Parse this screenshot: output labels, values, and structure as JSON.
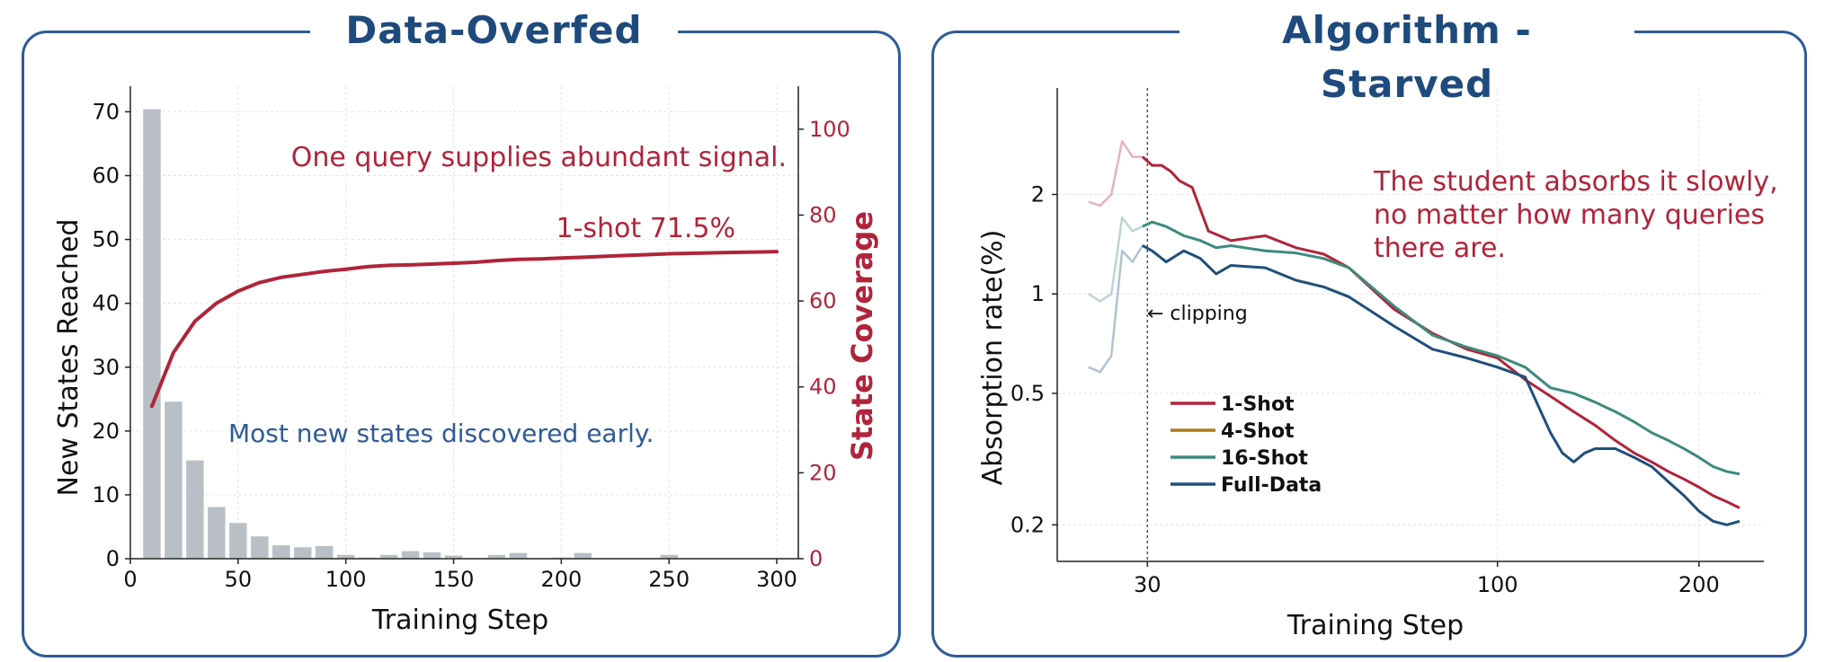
{
  "panels": {
    "left_title": "Data-Overfed",
    "right_title": "Algorithm -Starved"
  },
  "colors": {
    "frame": "#2f5b96",
    "title": "#1e4a7c",
    "accent_red": "#b0243a",
    "bar": "#b9bfc7",
    "blue_text": "#2f5b96"
  },
  "chart_data": [
    {
      "type": "bar",
      "xlabel": "Training Step",
      "ylabel": "New States Reached",
      "xlim": [
        0,
        310
      ],
      "ylim": [
        0,
        74
      ],
      "xticks": [
        0,
        50,
        100,
        150,
        200,
        250,
        300
      ],
      "yticks": [
        0,
        10,
        20,
        30,
        40,
        50,
        60,
        70
      ],
      "grid": true,
      "bar_width": 10,
      "bars": {
        "x": [
          10,
          20,
          30,
          40,
          50,
          60,
          70,
          80,
          90,
          100,
          110,
          120,
          130,
          140,
          150,
          160,
          170,
          180,
          190,
          200,
          210,
          220,
          230,
          240,
          250,
          260,
          270,
          280,
          290,
          300
        ],
        "values": [
          70.5,
          24.7,
          15.5,
          8.2,
          5.7,
          3.6,
          2.2,
          1.9,
          2.1,
          0.7,
          0.3,
          0.7,
          1.3,
          1.1,
          0.6,
          0.2,
          0.7,
          1.0,
          0.2,
          0.3,
          1.0,
          0.2,
          0.2,
          0.2,
          0.7,
          0.2,
          0.2,
          0.2,
          0.2,
          0.2
        ]
      },
      "secondary_axis": {
        "ylabel": "State Coverage",
        "ylim": [
          0,
          110
        ],
        "yticks": [
          0,
          20,
          40,
          60,
          80,
          100
        ]
      },
      "line": {
        "x": [
          10,
          20,
          30,
          40,
          50,
          60,
          70,
          80,
          90,
          100,
          110,
          120,
          130,
          140,
          150,
          160,
          170,
          180,
          190,
          200,
          210,
          220,
          230,
          240,
          250,
          260,
          270,
          280,
          290,
          300
        ],
        "values": [
          35.5,
          48.0,
          55.3,
          59.5,
          62.3,
          64.3,
          65.5,
          66.2,
          66.9,
          67.4,
          68.0,
          68.3,
          68.4,
          68.6,
          68.8,
          69.0,
          69.4,
          69.7,
          69.8,
          70.0,
          70.2,
          70.4,
          70.6,
          70.8,
          71.0,
          71.1,
          71.2,
          71.3,
          71.4,
          71.5
        ]
      },
      "annotations": [
        "One query supplies abundant signal.",
        "1-shot 71.5%",
        "Most new states discovered early."
      ]
    },
    {
      "type": "line",
      "xscale": "log",
      "yscale": "log",
      "xlabel": "Training Step",
      "ylabel": "Absorption rate(%)",
      "xlim": [
        22,
        250
      ],
      "ylim": [
        0.155,
        4.2
      ],
      "xticks": [
        30,
        100,
        200
      ],
      "yticks": [
        0.2,
        0.5,
        1,
        2
      ],
      "ytick_labels": [
        "0.2",
        "0.5",
        "1",
        "2"
      ],
      "grid": true,
      "vline": {
        "x": 30,
        "label": "← clipping"
      },
      "legend": "center-left",
      "series": [
        {
          "name": "1-Shot",
          "color": "#b0243a",
          "x": [
            24.5,
            25.5,
            26.5,
            27.5,
            28.5,
            29.5,
            30.5,
            31.5,
            32.5,
            33.5,
            35,
            37,
            40,
            45,
            50,
            55,
            60,
            70,
            80,
            90,
            100,
            110,
            120,
            130,
            140,
            150,
            160,
            170,
            180,
            190,
            200,
            210,
            220,
            230
          ],
          "values": [
            1.9,
            1.85,
            2.0,
            2.9,
            2.6,
            2.6,
            2.45,
            2.45,
            2.35,
            2.2,
            2.1,
            1.55,
            1.45,
            1.5,
            1.38,
            1.32,
            1.2,
            0.9,
            0.76,
            0.68,
            0.64,
            0.55,
            0.49,
            0.44,
            0.4,
            0.36,
            0.33,
            0.31,
            0.29,
            0.275,
            0.26,
            0.245,
            0.235,
            0.225
          ]
        },
        {
          "name": "4-Shot",
          "color": "#a87d18",
          "x": [],
          "values": []
        },
        {
          "name": "16-Shot",
          "color": "#3d8a7e",
          "x": [
            24.5,
            25.5,
            26.5,
            27.5,
            28.5,
            29.5,
            30.5,
            32,
            34,
            36,
            38,
            40,
            45,
            50,
            55,
            60,
            70,
            80,
            90,
            100,
            110,
            120,
            130,
            140,
            150,
            160,
            170,
            180,
            190,
            200,
            210,
            220,
            230
          ],
          "values": [
            1.0,
            0.95,
            1.0,
            1.7,
            1.55,
            1.6,
            1.65,
            1.6,
            1.5,
            1.45,
            1.38,
            1.4,
            1.35,
            1.33,
            1.28,
            1.2,
            0.92,
            0.75,
            0.69,
            0.65,
            0.6,
            0.52,
            0.5,
            0.47,
            0.44,
            0.41,
            0.38,
            0.36,
            0.34,
            0.32,
            0.3,
            0.29,
            0.285
          ]
        },
        {
          "name": "Full-Data",
          "color": "#1f4f7a",
          "x": [
            24.5,
            25.5,
            26.5,
            27.5,
            28.5,
            29.5,
            30.5,
            32,
            34,
            36,
            38,
            40,
            45,
            50,
            55,
            60,
            70,
            80,
            90,
            100,
            110,
            120,
            125,
            130,
            135,
            140,
            150,
            160,
            170,
            180,
            190,
            200,
            210,
            220,
            230
          ],
          "values": [
            0.6,
            0.58,
            0.65,
            1.35,
            1.25,
            1.4,
            1.35,
            1.25,
            1.35,
            1.28,
            1.15,
            1.22,
            1.2,
            1.1,
            1.05,
            0.98,
            0.8,
            0.68,
            0.64,
            0.6,
            0.56,
            0.38,
            0.33,
            0.31,
            0.33,
            0.34,
            0.34,
            0.32,
            0.3,
            0.27,
            0.245,
            0.22,
            0.205,
            0.2,
            0.205
          ]
        }
      ],
      "annotation": "The student absorbs it slowly,\nno matter how many queries\nthere are."
    }
  ]
}
